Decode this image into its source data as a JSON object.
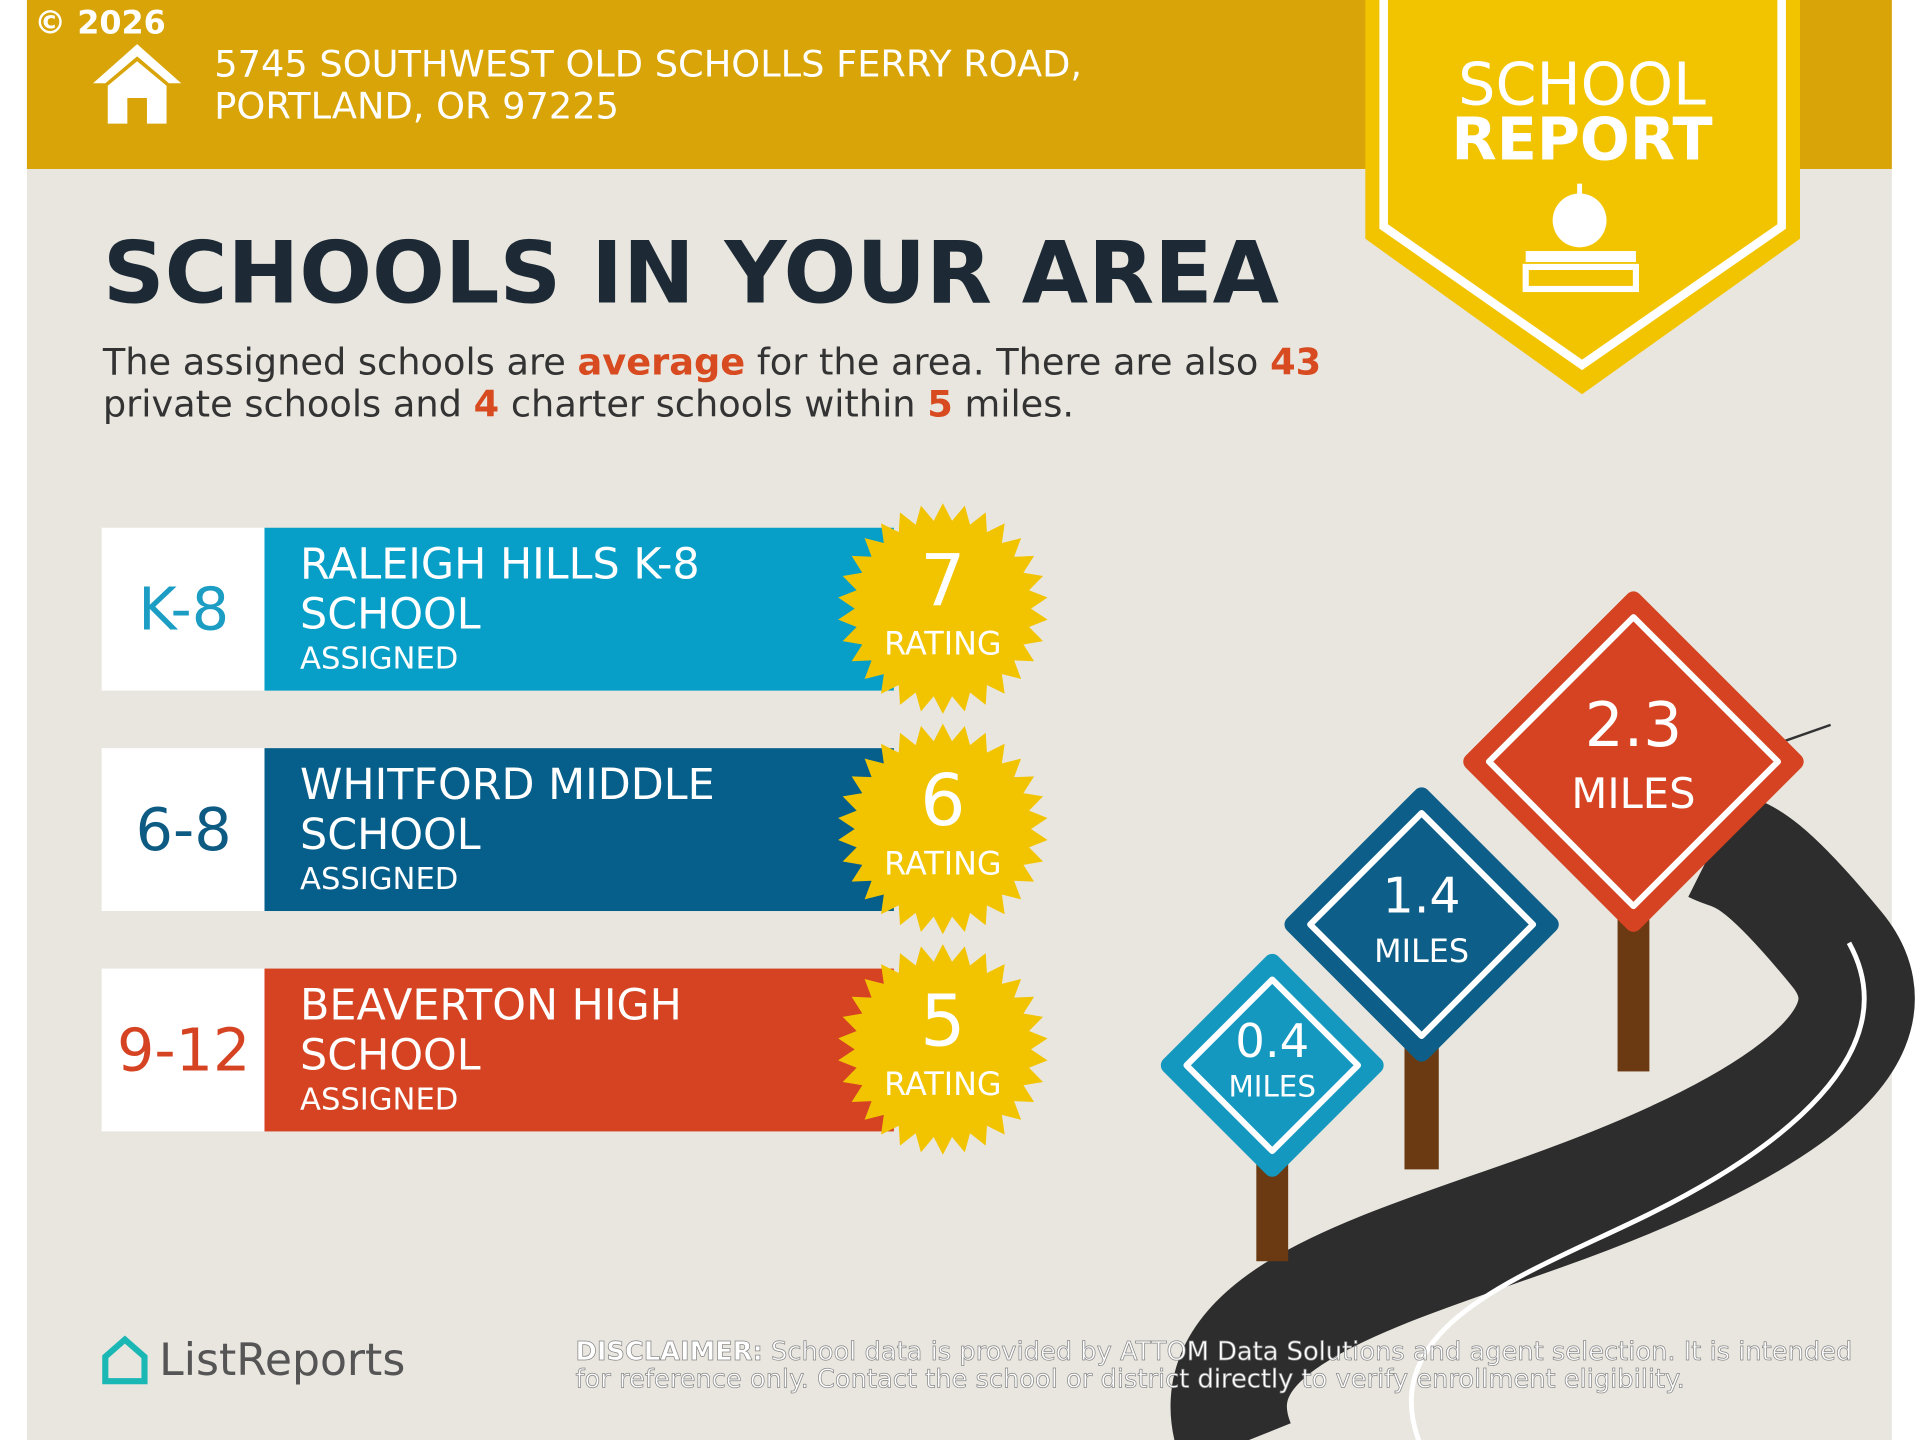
{
  "copyright": "© 2026",
  "header": {
    "address_lines": [
      "5745 SOUTHWEST OLD SCHOLLS FERRY ROAD,",
      "PORTLAND, OR 97225"
    ]
  },
  "badge": {
    "line1": "SCHOOL",
    "line2": "REPORT"
  },
  "heading": "SCHOOLS IN YOUR AREA",
  "summary": {
    "lines": [
      [
        {
          "text": "The assigned schools are "
        },
        {
          "text": "average",
          "emphasis": true
        },
        {
          "text": " for the area. There are also "
        },
        {
          "text": "43",
          "emphasis": true
        }
      ],
      [
        {
          "text": "private schools and "
        },
        {
          "text": "4",
          "emphasis": true
        },
        {
          "text": " charter schools within "
        },
        {
          "text": "5",
          "emphasis": true
        },
        {
          "text": " miles."
        }
      ]
    ]
  },
  "schools": [
    {
      "grades": "K-8",
      "name_lines": [
        "RALEIGH HILLS K-8",
        "SCHOOL"
      ],
      "status": "ASSIGNED",
      "rating": "7",
      "rating_label": "RATING",
      "color": "#079fc7",
      "grade_color": "#1b9dc4"
    },
    {
      "grades": "6-8",
      "name_lines": [
        "WHITFORD MIDDLE",
        "SCHOOL"
      ],
      "status": "ASSIGNED",
      "rating": "6",
      "rating_label": "RATING",
      "color": "#055f8a",
      "grade_color": "#0d5a82"
    },
    {
      "grades": "9-12",
      "name_lines": [
        "BEAVERTON HIGH",
        "SCHOOL"
      ],
      "status": "ASSIGNED",
      "rating": "5",
      "rating_label": "RATING",
      "color": "#d54322",
      "grade_color": "#d54322"
    }
  ],
  "signs": [
    {
      "distance": "0.4",
      "unit": "MILES",
      "color": "#1598c0"
    },
    {
      "distance": "1.4",
      "unit": "MILES",
      "color": "#0d5f8a"
    },
    {
      "distance": "2.3",
      "unit": "MILES",
      "color": "#d54322"
    }
  ],
  "footer": {
    "logo": "ListReports",
    "disclaimer_label": "DISCLAIMER:",
    "disclaimer_lines": [
      " School data is provided by ATTOM Data Solutions and agent selection. It is intended",
      "for reference only. Contact the school or district directly to verify enrollment eligibility."
    ]
  }
}
